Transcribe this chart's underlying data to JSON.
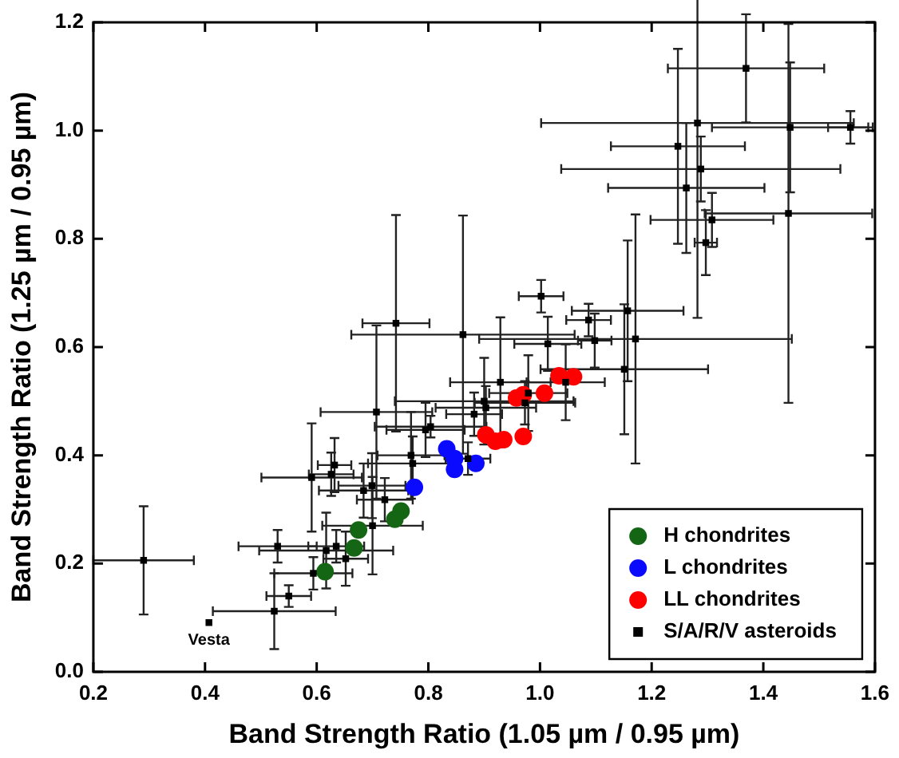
{
  "chart_data": {
    "type": "scatter",
    "xlabel": "Band Strength Ratio (1.05 µm / 0.95 µm)",
    "ylabel": "Band Strength Ratio (1.25 µm / 0.95 µm)",
    "xlim": [
      0.2,
      1.6
    ],
    "xticks": [
      {
        "value": 0.2,
        "label": "0.2"
      },
      {
        "value": 0.4,
        "label": "0.4"
      },
      {
        "value": 0.6,
        "label": "0.6"
      },
      {
        "value": 0.8,
        "label": "0.8"
      },
      {
        "value": 1.0,
        "label": "1.0"
      },
      {
        "value": 1.2,
        "label": "1.2"
      },
      {
        "value": 1.4,
        "label": "1.4"
      },
      {
        "value": 1.6,
        "label": "1.6"
      }
    ],
    "ylim": [
      0,
      1.2
    ],
    "yticks": [
      {
        "value": 0,
        "label": "0.0"
      },
      {
        "value": 0.2,
        "label": "0.2"
      },
      {
        "value": 0.4,
        "label": "0.4"
      },
      {
        "value": 0.6,
        "label": "0.6"
      },
      {
        "value": 0.8,
        "label": "0.8"
      },
      {
        "value": 1.0,
        "label": "1.0"
      },
      {
        "value": 1.2,
        "label": "1.2"
      }
    ],
    "grid": false,
    "legend": "bottom right",
    "annotations": [
      {
        "text": "Vesta",
        "x": 0.407,
        "y": 0.091
      }
    ],
    "series": [
      {
        "name": "H chondrites",
        "color": "#146614",
        "marker": "circle",
        "x": [
          0.615,
          0.667,
          0.675,
          0.74,
          0.751
        ],
        "values": [
          0.185,
          0.229,
          0.262,
          0.282,
          0.297
        ]
      },
      {
        "name": "L chondrites",
        "color": "#0a0aff",
        "marker": "circle",
        "x": [
          0.775,
          0.833,
          0.847,
          0.847,
          0.885
        ],
        "values": [
          0.341,
          0.412,
          0.374,
          0.394,
          0.385
        ]
      },
      {
        "name": "LL chondrites",
        "color": "#ff0000",
        "marker": "circle",
        "x": [
          0.903,
          0.92,
          0.935,
          0.97,
          0.958,
          0.97,
          1.008,
          1.034,
          1.06
        ],
        "values": [
          0.438,
          0.426,
          0.429,
          0.435,
          0.506,
          0.512,
          0.515,
          0.547,
          0.545
        ]
      },
      {
        "name": "S/A/R/V asteroids",
        "color": "#000000",
        "marker": "square",
        "x": [
          0.29,
          0.407,
          0.524,
          0.55,
          0.53,
          0.594,
          0.617,
          0.635,
          0.652,
          0.7,
          0.632,
          0.626,
          0.591,
          0.684,
          0.699,
          0.707,
          0.722,
          0.742,
          0.862,
          1.002,
          1.087,
          1.098,
          1.014,
          0.929,
          1.046,
          0.979,
          0.973,
          0.9,
          0.903,
          0.882,
          0.795,
          0.804,
          0.769,
          0.772,
          0.871,
          1.297,
          1.157,
          1.171,
          1.151,
          1.369,
          1.282,
          1.448,
          1.556,
          1.247,
          1.288,
          1.262,
          1.445,
          1.308
        ],
        "values": [
          0.206,
          0.091,
          0.112,
          0.14,
          0.232,
          0.182,
          0.224,
          0.232,
          0.209,
          0.27,
          0.382,
          0.365,
          0.359,
          0.335,
          0.344,
          0.48,
          0.318,
          0.644,
          0.623,
          0.694,
          0.65,
          0.612,
          0.606,
          0.535,
          0.535,
          0.515,
          0.497,
          0.5,
          0.488,
          0.476,
          0.447,
          0.453,
          0.4,
          0.385,
          0.394,
          0.793,
          0.667,
          0.615,
          0.559,
          1.115,
          1.014,
          1.006,
          1.006,
          0.971,
          0.929,
          0.894,
          0.847,
          0.835
        ],
        "xerrors": [
          0.09,
          null,
          0.11,
          0.04,
          0.07,
          0.07,
          0.12,
          0.05,
          0.04,
          0.09,
          0.03,
          0.04,
          0.09,
          0.08,
          0.06,
          0.1,
          0.05,
          0.06,
          0.2,
          0.04,
          0.04,
          0.03,
          0.06,
          0.09,
          0.07,
          0.07,
          0.09,
          0.16,
          0.09,
          0.05,
          0.07,
          0.1,
          0.06,
          0.08,
          0.04,
          0.02,
          0.1,
          0.28,
          0.15,
          0.14,
          0.28,
          0.14,
          0.04,
          0.12,
          0.25,
          0.14,
          0.15,
          0.11
        ],
        "errors": [
          0.1,
          null,
          0.07,
          0.02,
          0.03,
          0.03,
          0.07,
          0.03,
          0.05,
          0.09,
          0.05,
          0.04,
          0.1,
          0.05,
          0.06,
          0.16,
          0.04,
          0.2,
          0.22,
          0.03,
          0.03,
          0.05,
          0.05,
          0.12,
          0.07,
          0.07,
          0.04,
          0.08,
          0.04,
          0.04,
          0.05,
          0.02,
          0.08,
          0.05,
          0.03,
          0.06,
          0.13,
          0.23,
          0.12,
          0.1,
          0.36,
          0.12,
          0.03,
          0.18,
          0.06,
          0.12,
          0.35,
          0.05
        ]
      }
    ]
  }
}
